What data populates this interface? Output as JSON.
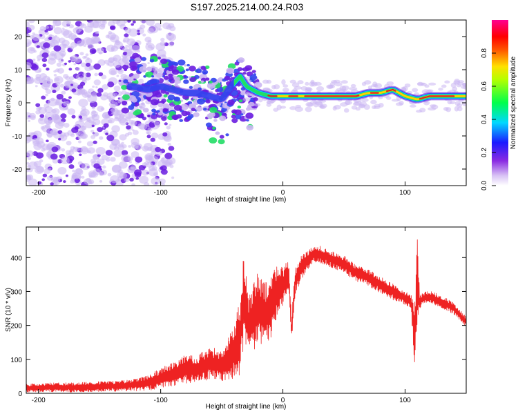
{
  "title": "S197.2025.214.00.24.R03",
  "colors": {
    "axis": "#000000",
    "snr_line": "#ee2222",
    "spec_core": "#dd2222",
    "spec_mid": "#22dd66",
    "spec_edge": "#3344ee",
    "spec_bg": "#6a1de0",
    "spec_faint": "#cbb6f2"
  },
  "chart_data": [
    {
      "type": "heatmap",
      "title": "S197.2025.214.00.24.R03",
      "xlabel": "Height of straight line (km)",
      "ylabel": "Frequency (Hz)",
      "xlim": [
        -210,
        150
      ],
      "ylim": [
        -25,
        25
      ],
      "x_ticks": [
        -200,
        -100,
        0,
        100
      ],
      "y_ticks": [
        -20,
        -10,
        0,
        10,
        20
      ],
      "colorbar": {
        "label": "Normalized spectral amplitude",
        "range": [
          0,
          1
        ],
        "ticks": [
          "0.0",
          "0.2",
          "0.4",
          "0.6",
          "0.8"
        ],
        "colormap": "rainbow (white-violet-blue-cyan-green-yellow-red-magenta)"
      },
      "ridge": {
        "x": [
          -125,
          -110,
          -100,
          -90,
          -80,
          -70,
          -60,
          -50,
          -40,
          -35,
          -30,
          -20,
          -10,
          0,
          10,
          20,
          40,
          60,
          70,
          80,
          90,
          100,
          110,
          120,
          150
        ],
        "y": [
          5,
          4,
          5,
          4,
          3,
          3,
          2,
          1,
          6,
          8,
          5,
          3,
          2,
          2,
          2,
          2,
          2,
          2,
          3,
          3,
          4,
          2,
          1,
          2,
          2
        ],
        "amplitude": [
          0.2,
          0.25,
          0.3,
          0.25,
          0.25,
          0.3,
          0.3,
          0.3,
          0.35,
          0.4,
          0.45,
          0.5,
          0.6,
          0.7,
          0.85,
          0.85,
          0.9,
          0.9,
          0.85,
          0.9,
          0.85,
          0.8,
          0.7,
          0.8,
          0.7
        ]
      },
      "noise_region": {
        "x": [
          -210,
          -125
        ],
        "y": [
          -25,
          25
        ],
        "amplitude": "0.05-0.2"
      },
      "grid": false
    },
    {
      "type": "line",
      "xlabel": "Height of straight line (km)",
      "ylabel": "SNR (10 * v/v)",
      "xlim": [
        -210,
        150
      ],
      "ylim": [
        0,
        490
      ],
      "x_ticks": [
        -200,
        -100,
        0,
        100
      ],
      "y_ticks": [
        0,
        100,
        200,
        300,
        400
      ],
      "grid": false,
      "series": [
        {
          "x": [
            -210,
            -190,
            -170,
            -150,
            -130,
            -110,
            -100,
            -90,
            -80,
            -70,
            -60,
            -50,
            -40,
            -35,
            -32,
            -28,
            -20,
            -15,
            -10,
            -5,
            0,
            5,
            7,
            10,
            15,
            20,
            25,
            30,
            40,
            50,
            60,
            70,
            80,
            90,
            100,
            105,
            108,
            110,
            112,
            115,
            120,
            130,
            140,
            150
          ],
          "y": [
            15,
            18,
            17,
            20,
            22,
            30,
            45,
            55,
            70,
            70,
            90,
            80,
            120,
            170,
            280,
            200,
            250,
            230,
            250,
            300,
            320,
            340,
            180,
            330,
            370,
            390,
            410,
            410,
            395,
            380,
            355,
            340,
            320,
            300,
            280,
            270,
            150,
            350,
            270,
            280,
            285,
            270,
            250,
            210
          ],
          "envelope_halfwidth": [
            12,
            14,
            14,
            15,
            16,
            22,
            30,
            35,
            45,
            40,
            50,
            45,
            80,
            120,
            150,
            100,
            110,
            100,
            90,
            80,
            60,
            50,
            40,
            40,
            35,
            30,
            25,
            25,
            25,
            25,
            25,
            25,
            25,
            25,
            20,
            20,
            120,
            130,
            20,
            18,
            18,
            18,
            18,
            15
          ]
        }
      ]
    }
  ]
}
